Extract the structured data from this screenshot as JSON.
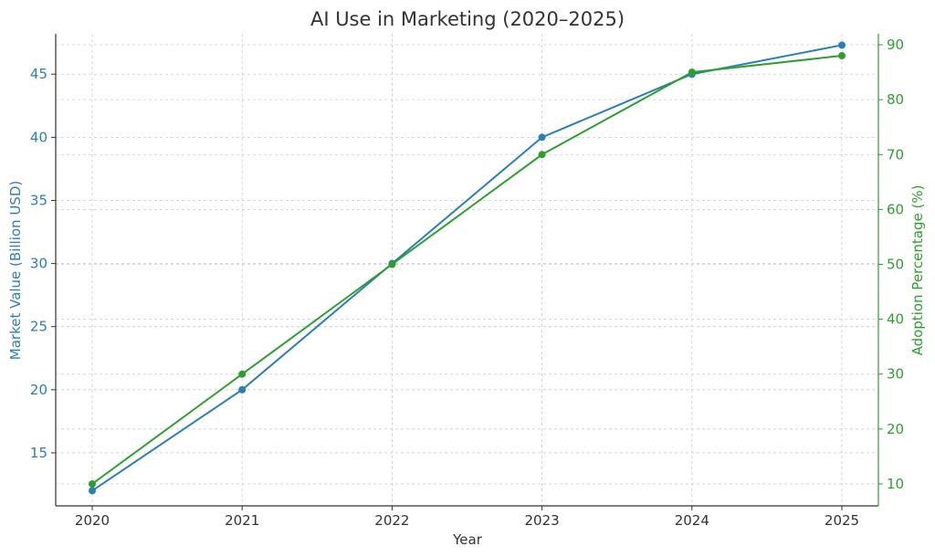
{
  "chart_data": {
    "type": "line",
    "title": "AI Use in Marketing (2020–2025)",
    "xlabel": "Year",
    "categories": [
      "2020",
      "2021",
      "2022",
      "2023",
      "2024",
      "2025"
    ],
    "y_left": {
      "label": "Market Value (Billion USD)",
      "ylim": [
        10.8,
        48.2
      ],
      "ticks": [
        "15",
        "20",
        "25",
        "30",
        "35",
        "40",
        "45"
      ],
      "color": "#2a7fb8"
    },
    "y_right": {
      "label": "Adoption Percentage (%)",
      "ylim": [
        6,
        92
      ],
      "ticks": [
        "10",
        "20",
        "30",
        "40",
        "50",
        "60",
        "70",
        "80",
        "90"
      ],
      "color": "#2ca02c"
    },
    "series": [
      {
        "name": "Market Value (Billion USD)",
        "axis": "left",
        "values": [
          12,
          20,
          30,
          40,
          45,
          47.3
        ],
        "color": "#2a7fb8"
      },
      {
        "name": "Adoption Percentage (%)",
        "axis": "right",
        "values": [
          10,
          30,
          50,
          70,
          85,
          88
        ],
        "color": "#2ca02c"
      }
    ],
    "grid": true
  }
}
